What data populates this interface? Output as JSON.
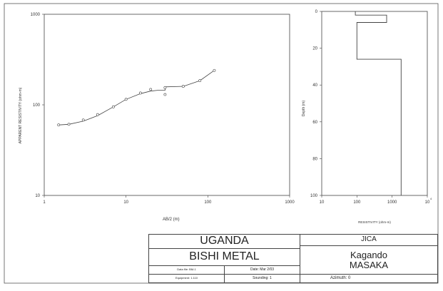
{
  "colors": {
    "line": "#444444",
    "text": "#333333",
    "background": "#ffffff"
  },
  "chart_data": [
    {
      "type": "line",
      "xscale": "log",
      "yscale": "log",
      "xlabel": "AB/2 (m)",
      "ylabel": "APPARENT RESISTIVITY (ohm-m)",
      "xlim": [
        1,
        1000
      ],
      "ylim": [
        10,
        1000
      ],
      "xtick_labels": [
        "1",
        "10",
        "100",
        "1000"
      ],
      "ytick_labels": [
        "10",
        "100",
        "1000"
      ],
      "series": [
        {
          "points_x": [
            1.5,
            2,
            3,
            4.5,
            7,
            10,
            15,
            20,
            30,
            30,
            50,
            80,
            120
          ],
          "points_y": [
            60,
            61,
            68,
            78,
            95,
            115,
            135,
            148,
            130,
            155,
            160,
            185,
            240
          ]
        },
        {
          "x": [
            1.5,
            2,
            3,
            4.5,
            7,
            10,
            15,
            20,
            25,
            30,
            30,
            50,
            80,
            120
          ],
          "y": [
            60,
            61,
            66,
            76,
            95,
            115,
            133,
            142,
            145,
            145,
            158,
            160,
            185,
            240
          ]
        }
      ]
    },
    {
      "type": "line",
      "xscale": "log",
      "xlabel": "RESISTIVITY (ohm-m)",
      "ylabel": "Depth (m)",
      "xlim": [
        10,
        10000
      ],
      "ylim": [
        100,
        0
      ],
      "xtick_labels": [
        "10",
        "100",
        "1000",
        "10"
      ],
      "xtick_exponent": "4",
      "ytick_labels": [
        "0",
        "20",
        "40",
        "60",
        "80",
        "100"
      ],
      "layers": [
        {
          "resistivity": 90,
          "top": 0,
          "bottom": 2
        },
        {
          "resistivity": 700,
          "top": 2,
          "bottom": 6
        },
        {
          "resistivity": 100,
          "top": 6,
          "bottom": 26
        },
        {
          "resistivity": 1800,
          "top": 26,
          "bottom": 100
        }
      ]
    }
  ],
  "title_block": {
    "country": "UGANDA",
    "project": "BISHI METAL",
    "org": "JICA",
    "location_line1": "Kagando",
    "location_line2": "MASAKA",
    "drawn_by": "Data file: BM-1",
    "date": "Date: Mar 2/03",
    "scale": "Equipment: 1.110",
    "sounding": "Sounding: 1",
    "azimuth": "Azimuth: 0"
  }
}
